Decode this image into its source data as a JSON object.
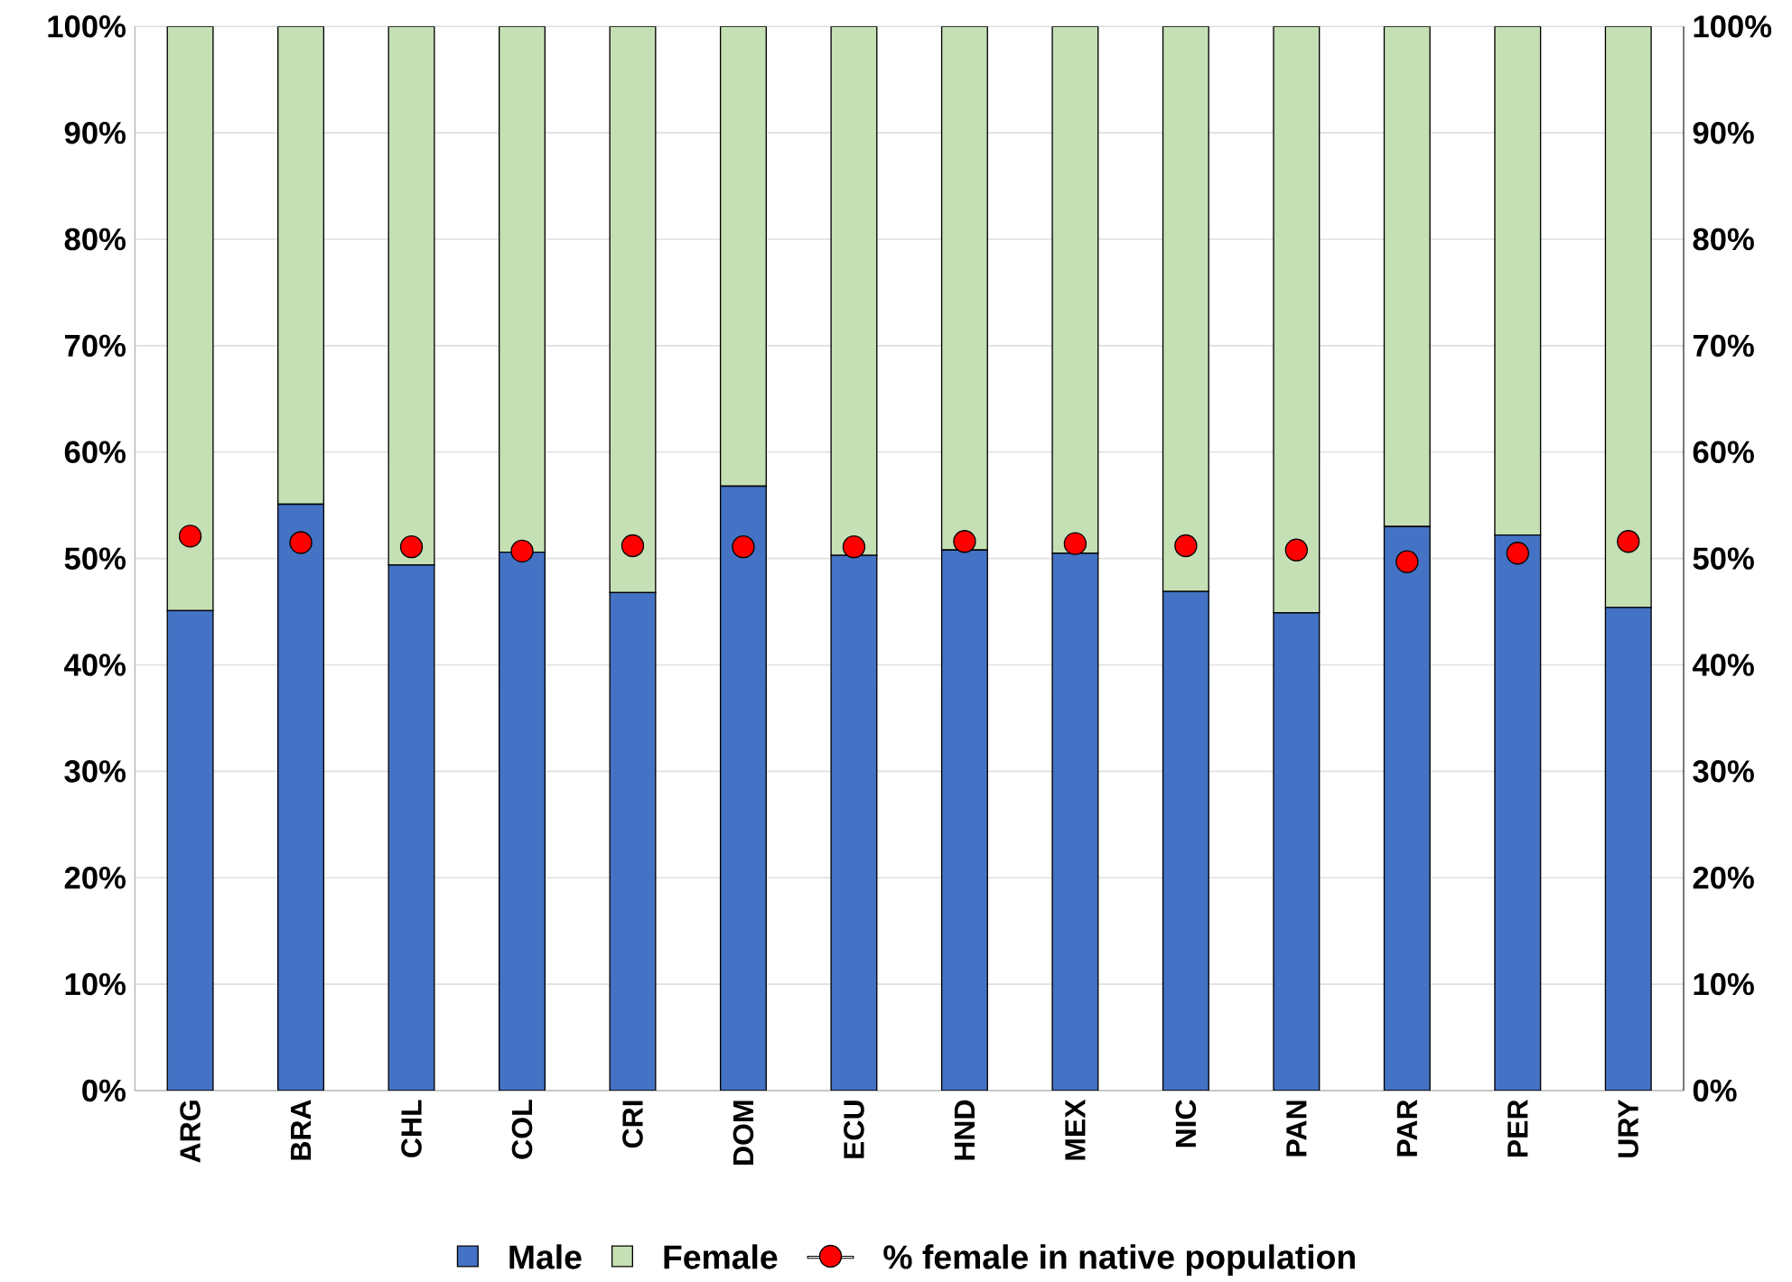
{
  "chart_data": {
    "type": "bar",
    "stacked": true,
    "categories": [
      "ARG",
      "BRA",
      "CHL",
      "COL",
      "CRI",
      "DOM",
      "ECU",
      "HND",
      "MEX",
      "NIC",
      "PAN",
      "PAR",
      "PER",
      "URY"
    ],
    "series": [
      {
        "name": "Male",
        "color": "#4472c4",
        "values": [
          45.1,
          55.1,
          49.4,
          50.6,
          46.8,
          56.8,
          50.3,
          50.8,
          50.5,
          46.9,
          44.9,
          53.0,
          52.2,
          45.4
        ]
      },
      {
        "name": "Female",
        "color": "#c5e0b4",
        "values": [
          54.9,
          44.9,
          50.6,
          49.4,
          53.2,
          43.2,
          49.7,
          49.2,
          49.5,
          53.1,
          55.1,
          47.0,
          47.8,
          54.6
        ]
      },
      {
        "name": "% female in native population",
        "type": "scatter",
        "marker": "circle",
        "color": "#ff0000",
        "x": [
          "ARG",
          "BRA",
          "CHL",
          "COL",
          "CRI",
          "DOM",
          "ECU",
          "HND",
          "MEX",
          "NIC",
          "PAN",
          "PAR",
          "PER",
          "URY"
        ],
        "values": [
          52.1,
          51.5,
          51.1,
          50.7,
          51.2,
          51.1,
          51.1,
          51.6,
          51.4,
          51.2,
          50.8,
          49.7,
          50.5,
          51.6
        ]
      }
    ],
    "ylim": [
      0,
      100
    ],
    "yticks": [
      {
        "value": 0,
        "label": "0%"
      },
      {
        "value": 10,
        "label": "10%"
      },
      {
        "value": 20,
        "label": "20%"
      },
      {
        "value": 30,
        "label": "30%"
      },
      {
        "value": 40,
        "label": "40%"
      },
      {
        "value": 50,
        "label": "50%"
      },
      {
        "value": 60,
        "label": "60%"
      },
      {
        "value": 70,
        "label": "70%"
      },
      {
        "value": 80,
        "label": "80%"
      },
      {
        "value": 90,
        "label": "90%"
      },
      {
        "value": 100,
        "label": "100%"
      }
    ],
    "y2lim": [
      0,
      100
    ],
    "y2ticks": [
      {
        "value": 0,
        "label": "0%"
      },
      {
        "value": 10,
        "label": "10%"
      },
      {
        "value": 20,
        "label": "20%"
      },
      {
        "value": 30,
        "label": "30%"
      },
      {
        "value": 40,
        "label": "40%"
      },
      {
        "value": 50,
        "label": "50%"
      },
      {
        "value": 60,
        "label": "60%"
      },
      {
        "value": 70,
        "label": "70%"
      },
      {
        "value": 80,
        "label": "80%"
      },
      {
        "value": 90,
        "label": "90%"
      },
      {
        "value": 100,
        "label": "100%"
      }
    ],
    "grid": "y",
    "legend": "bottom"
  }
}
